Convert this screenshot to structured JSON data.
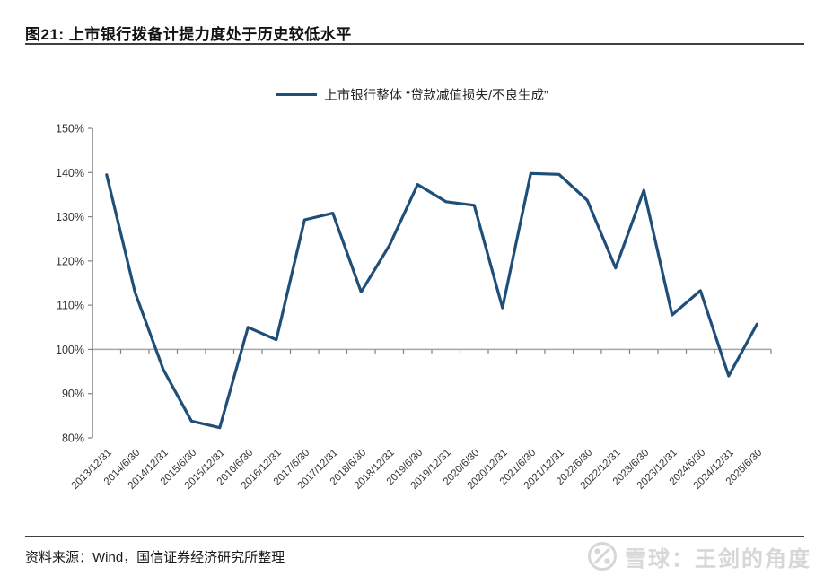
{
  "header": {
    "title": "图21: 上市银行拨备计提力度处于历史较低水平"
  },
  "legend": {
    "label": "上市银行整体 “贷款减值损失/不良生成”"
  },
  "chart_data": {
    "type": "line",
    "title": "图21: 上市银行拨备计提力度处于历史较低水平",
    "legend_position": "top",
    "grid": "only horizontal line at 100%",
    "categories": [
      "2013/12/31",
      "2014/6/30",
      "2014/12/31",
      "2015/6/30",
      "2015/12/31",
      "2016/6/30",
      "2016/12/31",
      "2017/6/30",
      "2017/12/31",
      "2018/6/30",
      "2018/12/31",
      "2019/6/30",
      "2019/12/31",
      "2020/6/30",
      "2020/12/31",
      "2021/6/30",
      "2021/12/31",
      "2022/6/30",
      "2022/12/31",
      "2023/6/30",
      "2023/12/31",
      "2024/6/30",
      "2024/12/31",
      "2025/6/30"
    ],
    "series": [
      {
        "name": "上市银行整体 “贷款减值损失/不良生成”",
        "values": [
          139.5,
          113.0,
          95.5,
          83.8,
          82.3,
          105.0,
          102.2,
          129.3,
          130.8,
          113.0,
          123.5,
          137.3,
          133.4,
          132.6,
          109.4,
          139.8,
          139.6,
          133.7,
          118.4,
          136.0,
          107.8,
          113.3,
          94.0,
          105.7
        ]
      }
    ],
    "xlabel": "",
    "ylabel": "",
    "ylim": [
      80,
      150
    ],
    "y_ticks": [
      "150%",
      "140%",
      "130%",
      "120%",
      "110%",
      "100%",
      "90%",
      "80%"
    ],
    "baseline_value": 100,
    "line_color": "#1F4E79",
    "axis_color": "#808080",
    "baseline_color": "#A6A6A6",
    "tick_label_color": "#333333"
  },
  "footer": {
    "source": "资料来源：Wind，国信证券经济研究所整理",
    "watermark": {
      "icon": "xueqiu-logo",
      "text": "雪球：王剑的角度"
    }
  }
}
